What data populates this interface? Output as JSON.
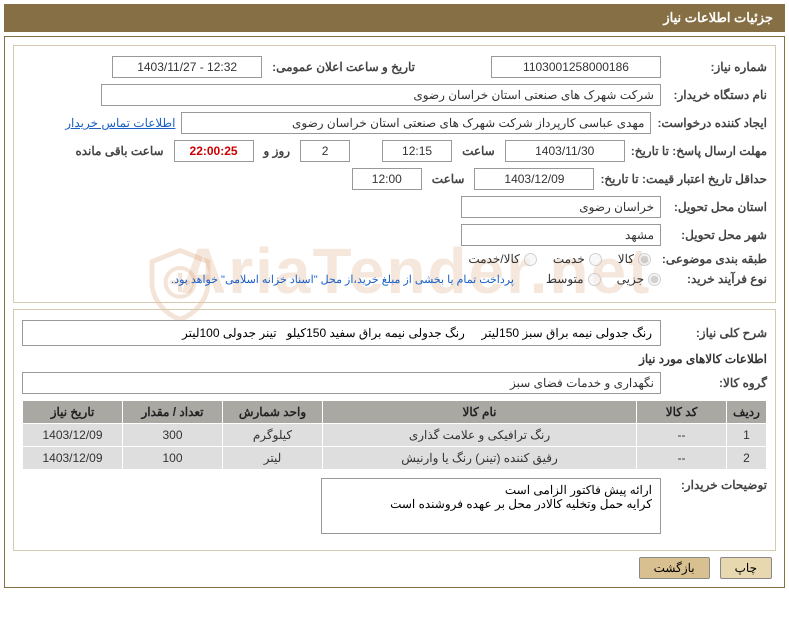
{
  "header": {
    "title": "جزئیات اطلاعات نیاز"
  },
  "fields": {
    "need_number_label": "شماره نیاز:",
    "need_number": "1103001258000186",
    "pub_datetime_label": "تاریخ و ساعت اعلان عمومی:",
    "pub_datetime": "1403/11/27 - 12:32",
    "buyer_org_label": "نام دستگاه خریدار:",
    "buyer_org": "شرکت شهرک های صنعتی استان خراسان رضوی",
    "requester_label": "ایجاد کننده درخواست:",
    "requester": "مهدی عباسی کارپرداز شرکت شهرک های صنعتی استان خراسان رضوی",
    "contact_link": "اطلاعات تماس خریدار",
    "deadline_label": "مهلت ارسال پاسخ: تا تاریخ:",
    "deadline_date": "1403/11/30",
    "hour_label": "ساعت",
    "deadline_time": "12:15",
    "days": "2",
    "day_and": "روز و",
    "countdown": "22:00:25",
    "remain_label": "ساعت باقی مانده",
    "validity_label": "حداقل تاریخ اعتبار قیمت: تا تاریخ:",
    "validity_date": "1403/12/09",
    "validity_time": "12:00",
    "province_label": "استان محل تحویل:",
    "province": "خراسان رضوی",
    "city_label": "شهر محل تحویل:",
    "city": "مشهد",
    "category_label": "طبقه بندی موضوعی:",
    "cat_goods": "کالا",
    "cat_service": "خدمت",
    "cat_both": "کالا/خدمت",
    "proc_type_label": "نوع فرآیند خرید:",
    "proc_small": "جزیی",
    "proc_medium": "متوسط",
    "payment_note": "پرداخت تمام یا بخشی از مبلغ خرید،از محل \"اسناد خزانه اسلامی\" خواهد بود.",
    "general_desc_label": "شرح کلی نیاز:",
    "general_desc": "رنگ جدولی نیمه براق سبز 150لیتر     رنگ جدولی نیمه براق سفید 150کیلو   تینر جدولی 100لیتر",
    "items_info_label": "اطلاعات کالاهای مورد نیاز",
    "group_label": "گروه کالا:",
    "group_value": "نگهداری و خدمات فضای سبز",
    "buyer_notes_label": "توضیحات خریدار:",
    "buyer_notes": "ارائه پیش فاکتور الزامی است\nکرایه حمل وتخلیه کالادر محل بر عهده فروشنده است"
  },
  "table": {
    "headers": {
      "row": "ردیف",
      "code": "کد کالا",
      "name": "نام کالا",
      "unit": "واحد شمارش",
      "qty": "تعداد / مقدار",
      "date": "تاریخ نیاز"
    },
    "rows": [
      {
        "row": "1",
        "code": "--",
        "name": "رنگ ترافیکی و علامت گذاری",
        "unit": "کیلوگرم",
        "qty": "300",
        "date": "1403/12/09"
      },
      {
        "row": "2",
        "code": "--",
        "name": "رقیق کننده (تینر) رنگ یا وارنیش",
        "unit": "لیتر",
        "qty": "100",
        "date": "1403/12/09"
      }
    ]
  },
  "buttons": {
    "print": "چاپ",
    "back": "بازگشت"
  },
  "colors": {
    "header_bg": "#876f45",
    "border": "#876f45"
  }
}
